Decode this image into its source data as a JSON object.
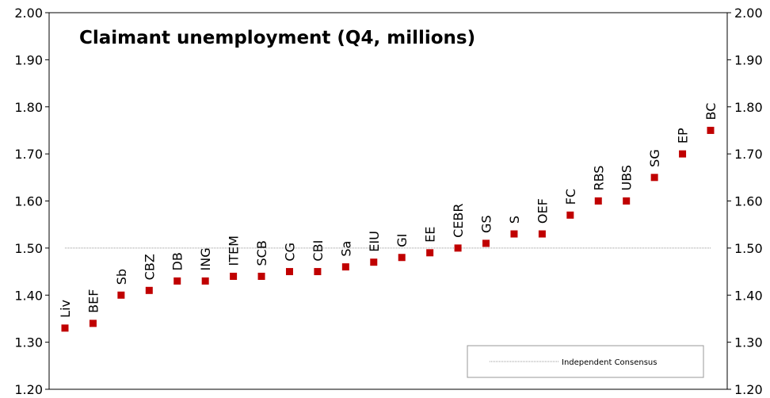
{
  "chart_data": {
    "type": "scatter",
    "title": "Claimant unemployment  (Q4, millions)",
    "categories": [
      "Liv",
      "BEF",
      "Sb",
      "CBZ",
      "DB",
      "ING",
      "ITEM",
      "SCB",
      "CG",
      "CBI",
      "Sa",
      "EIU",
      "GI",
      "EE",
      "CEBR",
      "GS",
      "S",
      "OEF",
      "FC",
      "RBS",
      "UBS",
      "SG",
      "EP",
      "BC"
    ],
    "values": [
      1.33,
      1.34,
      1.4,
      1.41,
      1.43,
      1.43,
      1.44,
      1.44,
      1.45,
      1.45,
      1.46,
      1.47,
      1.48,
      1.49,
      1.5,
      1.51,
      1.53,
      1.53,
      1.57,
      1.6,
      1.6,
      1.65,
      1.7,
      1.75
    ],
    "ylim": [
      1.2,
      2.0
    ],
    "y_ticks": [
      "1.20",
      "1.30",
      "1.40",
      "1.50",
      "1.60",
      "1.70",
      "1.80",
      "1.90",
      "2.00"
    ],
    "reference_line": {
      "label": "Independent Consensus",
      "value": 1.5
    },
    "marker_color": "#c00000",
    "reference_line_color": "#999999",
    "grid": false,
    "legend_position": "bottom-right"
  }
}
